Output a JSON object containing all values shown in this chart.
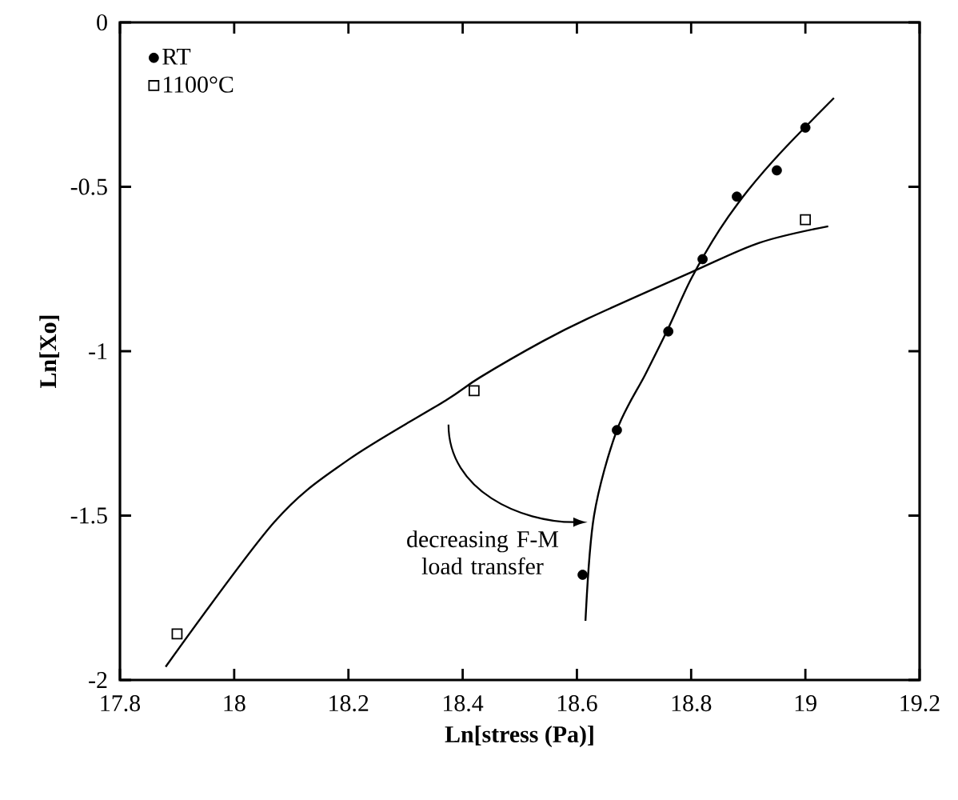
{
  "chart_data": {
    "type": "scatter",
    "xlabel": "Ln[stress (Pa)]",
    "ylabel": "Ln[Xo]",
    "xlim": [
      17.8,
      19.2
    ],
    "xticks": [
      17.8,
      18,
      18.2,
      18.4,
      18.6,
      18.8,
      19,
      19.2
    ],
    "ylim": [
      -2,
      0
    ],
    "yticks": [
      -2,
      -1.5,
      -1,
      -0.5,
      0
    ],
    "grid": false,
    "legend": "top left",
    "annotations": [
      {
        "text": "decreasing F-M load transfer",
        "x": 18.63,
        "y": -1.52
      }
    ],
    "series": [
      {
        "name": "RT",
        "type": "scatter",
        "marker": "circle",
        "color": "#000000",
        "x": [
          18.61,
          18.67,
          18.76,
          18.82,
          18.88,
          18.95,
          19.0
        ],
        "values": [
          -1.68,
          -1.24,
          -0.94,
          -0.72,
          -0.53,
          -0.45,
          -0.32
        ]
      },
      {
        "name": "1100°C",
        "type": "scatter",
        "marker": "square",
        "color": "#000000",
        "x": [
          17.9,
          18.42,
          19.0
        ],
        "values": [
          -1.86,
          -1.12,
          -0.6
        ]
      },
      {
        "type": "line",
        "marker": "none",
        "color": "#000000",
        "x": [
          18.615,
          18.63,
          18.67,
          18.72,
          18.76,
          18.8,
          18.85,
          18.9,
          18.96,
          19.05
        ],
        "values": [
          -1.82,
          -1.5,
          -1.24,
          -1.07,
          -0.93,
          -0.78,
          -0.63,
          -0.51,
          -0.39,
          -0.23
        ]
      },
      {
        "type": "line",
        "marker": "none",
        "color": "#000000",
        "x": [
          17.88,
          18.07,
          18.2,
          18.37,
          18.43,
          18.54,
          18.62,
          18.8,
          18.92,
          19.04
        ],
        "values": [
          -1.96,
          -1.52,
          -1.33,
          -1.15,
          -1.08,
          -0.97,
          -0.9,
          -0.76,
          -0.67,
          -0.62
        ]
      }
    ]
  }
}
